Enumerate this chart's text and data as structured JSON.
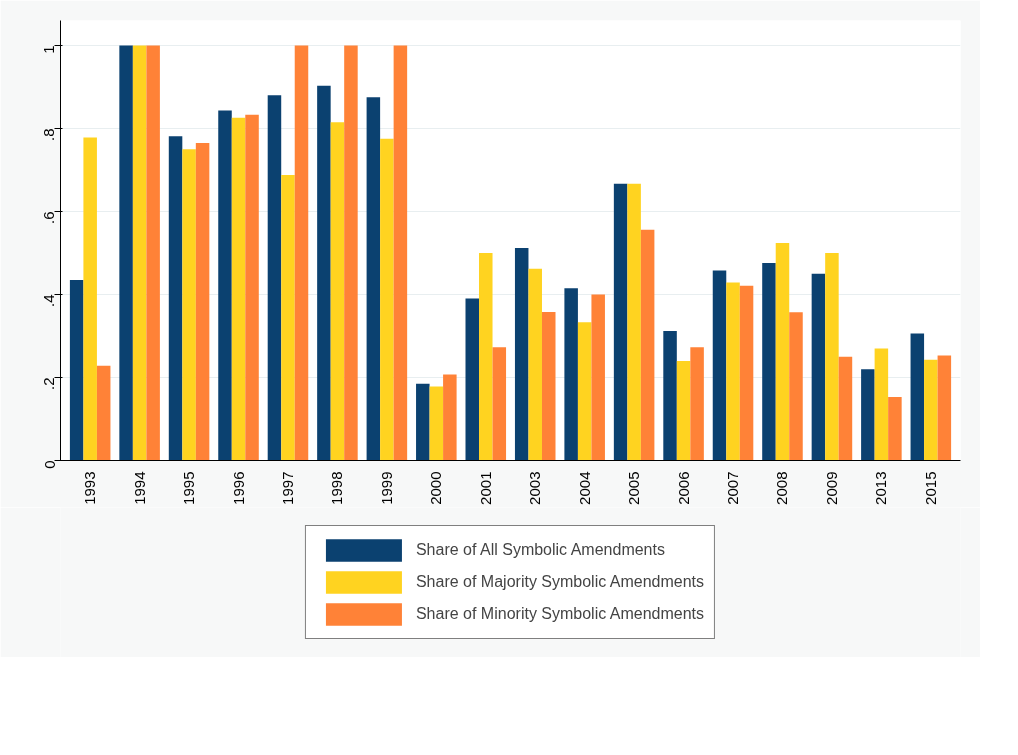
{
  "chart_data": {
    "type": "bar",
    "categories": [
      "1993",
      "1994",
      "1995",
      "1996",
      "1997",
      "1998",
      "1999",
      "2000",
      "2001",
      "2003",
      "2004",
      "2005",
      "2006",
      "2007",
      "2008",
      "2009",
      "2013",
      "2015"
    ],
    "series": [
      {
        "name": "Share of All Symbolic Amendments",
        "color": "#0b4170",
        "values": [
          0.435,
          1,
          0.781,
          0.843,
          0.88,
          0.903,
          0.875,
          0.185,
          0.39,
          0.512,
          0.415,
          0.667,
          0.312,
          0.458,
          0.476,
          0.45,
          0.22,
          0.306
        ]
      },
      {
        "name": "Share of Majority Symbolic Amendments",
        "color": "#ffd320",
        "values": [
          0.778,
          1,
          0.75,
          0.826,
          0.688,
          0.815,
          0.775,
          0.178,
          0.5,
          0.462,
          0.333,
          0.667,
          0.24,
          0.429,
          0.524,
          0.5,
          0.27,
          0.243
        ]
      },
      {
        "name": "Share of Minority Symbolic Amendments",
        "color": "#ff8237",
        "values": [
          0.228,
          1,
          0.765,
          0.833,
          1,
          1,
          1,
          0.207,
          0.273,
          0.358,
          0.4,
          0.556,
          0.273,
          0.421,
          0.357,
          0.25,
          0.153,
          0.253
        ]
      }
    ],
    "ylim": [
      0,
      1.06
    ],
    "yticks": [
      0,
      {
        "value": 0.2,
        "label": ".2"
      },
      {
        "value": 0.4,
        "label": ".4"
      },
      {
        "value": 0.6,
        "label": ".6"
      },
      {
        "value": 0.8,
        "label": ".8"
      },
      1
    ],
    "grid": "y",
    "legend": "bottom"
  }
}
